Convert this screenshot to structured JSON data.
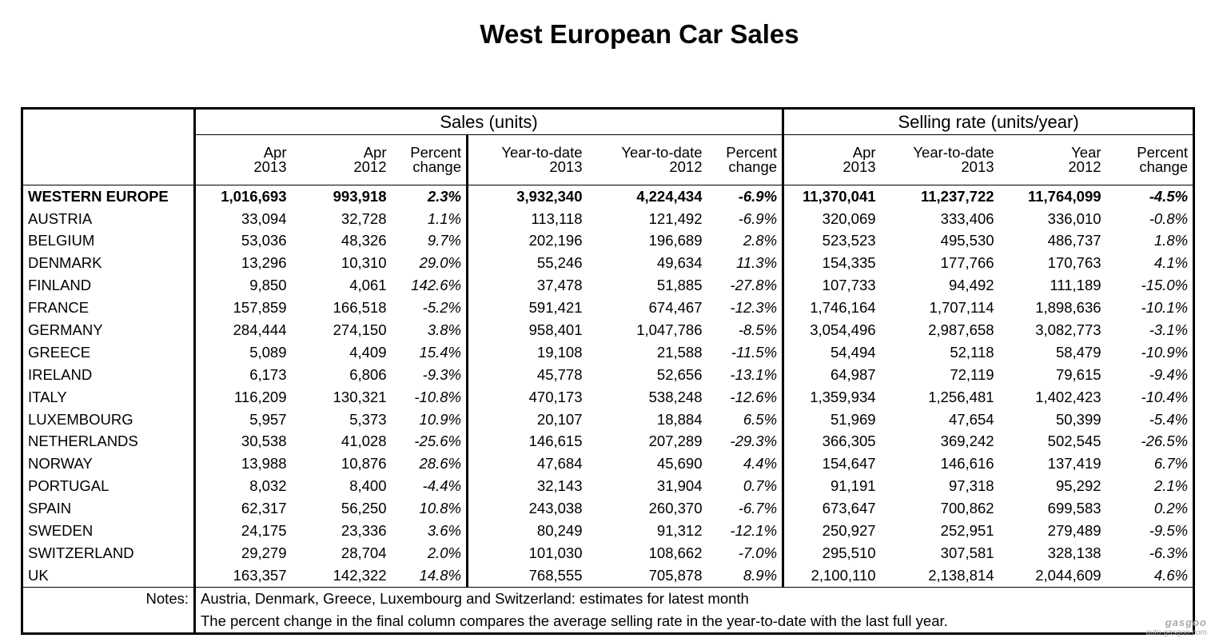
{
  "title": "West European Car Sales",
  "groups": {
    "sales": "Sales (units)",
    "rate": "Selling rate (units/year)"
  },
  "headers_top": [
    "Apr",
    "Apr",
    "Percent",
    "Year-to-date",
    "Year-to-date",
    "Percent",
    "Apr",
    "Year-to-date",
    "Year",
    "Percent"
  ],
  "headers_bottom": [
    "2013",
    "2012",
    "change",
    "2013",
    "2012",
    "change",
    "2013",
    "2013",
    "2012",
    "change"
  ],
  "rows": [
    {
      "name": "WESTERN EUROPE",
      "values": [
        "1,016,693",
        "993,918",
        "2.3%",
        "3,932,340",
        "4,224,434",
        "-6.9%",
        "11,370,041",
        "11,237,722",
        "11,764,099",
        "-4.5%"
      ]
    },
    {
      "name": "AUSTRIA",
      "values": [
        "33,094",
        "32,728",
        "1.1%",
        "113,118",
        "121,492",
        "-6.9%",
        "320,069",
        "333,406",
        "336,010",
        "-0.8%"
      ]
    },
    {
      "name": "BELGIUM",
      "values": [
        "53,036",
        "48,326",
        "9.7%",
        "202,196",
        "196,689",
        "2.8%",
        "523,523",
        "495,530",
        "486,737",
        "1.8%"
      ]
    },
    {
      "name": "DENMARK",
      "values": [
        "13,296",
        "10,310",
        "29.0%",
        "55,246",
        "49,634",
        "11.3%",
        "154,335",
        "177,766",
        "170,763",
        "4.1%"
      ]
    },
    {
      "name": "FINLAND",
      "values": [
        "9,850",
        "4,061",
        "142.6%",
        "37,478",
        "51,885",
        "-27.8%",
        "107,733",
        "94,492",
        "111,189",
        "-15.0%"
      ]
    },
    {
      "name": "FRANCE",
      "values": [
        "157,859",
        "166,518",
        "-5.2%",
        "591,421",
        "674,467",
        "-12.3%",
        "1,746,164",
        "1,707,114",
        "1,898,636",
        "-10.1%"
      ]
    },
    {
      "name": "GERMANY",
      "values": [
        "284,444",
        "274,150",
        "3.8%",
        "958,401",
        "1,047,786",
        "-8.5%",
        "3,054,496",
        "2,987,658",
        "3,082,773",
        "-3.1%"
      ]
    },
    {
      "name": "GREECE",
      "values": [
        "5,089",
        "4,409",
        "15.4%",
        "19,108",
        "21,588",
        "-11.5%",
        "54,494",
        "52,118",
        "58,479",
        "-10.9%"
      ]
    },
    {
      "name": "IRELAND",
      "values": [
        "6,173",
        "6,806",
        "-9.3%",
        "45,778",
        "52,656",
        "-13.1%",
        "64,987",
        "72,119",
        "79,615",
        "-9.4%"
      ]
    },
    {
      "name": "ITALY",
      "values": [
        "116,209",
        "130,321",
        "-10.8%",
        "470,173",
        "538,248",
        "-12.6%",
        "1,359,934",
        "1,256,481",
        "1,402,423",
        "-10.4%"
      ]
    },
    {
      "name": "LUXEMBOURG",
      "values": [
        "5,957",
        "5,373",
        "10.9%",
        "20,107",
        "18,884",
        "6.5%",
        "51,969",
        "47,654",
        "50,399",
        "-5.4%"
      ]
    },
    {
      "name": "NETHERLANDS",
      "values": [
        "30,538",
        "41,028",
        "-25.6%",
        "146,615",
        "207,289",
        "-29.3%",
        "366,305",
        "369,242",
        "502,545",
        "-26.5%"
      ]
    },
    {
      "name": "NORWAY",
      "values": [
        "13,988",
        "10,876",
        "28.6%",
        "47,684",
        "45,690",
        "4.4%",
        "154,647",
        "146,616",
        "137,419",
        "6.7%"
      ]
    },
    {
      "name": "PORTUGAL",
      "values": [
        "8,032",
        "8,400",
        "-4.4%",
        "32,143",
        "31,904",
        "0.7%",
        "91,191",
        "97,318",
        "95,292",
        "2.1%"
      ]
    },
    {
      "name": "SPAIN",
      "values": [
        "62,317",
        "56,250",
        "10.8%",
        "243,038",
        "260,370",
        "-6.7%",
        "673,647",
        "700,862",
        "699,583",
        "0.2%"
      ]
    },
    {
      "name": "SWEDEN",
      "values": [
        "24,175",
        "23,336",
        "3.6%",
        "80,249",
        "91,312",
        "-12.1%",
        "250,927",
        "252,951",
        "279,489",
        "-9.5%"
      ]
    },
    {
      "name": "SWITZERLAND",
      "values": [
        "29,279",
        "28,704",
        "2.0%",
        "101,030",
        "108,662",
        "-7.0%",
        "295,510",
        "307,581",
        "328,138",
        "-6.3%"
      ]
    },
    {
      "name": "UK",
      "values": [
        "163,357",
        "142,322",
        "14.8%",
        "768,555",
        "705,878",
        "8.9%",
        "2,100,110",
        "2,138,814",
        "2,044,609",
        "4.6%"
      ]
    }
  ],
  "notes": {
    "label": "Notes:",
    "lines": [
      "Austria, Denmark, Greece, Luxembourg and Switzerland: estimates for latest month",
      "The percent change in the final column compares the average selling rate in the year-to-date with the last full year."
    ]
  },
  "watermark": {
    "logo": "gasgoo",
    "url": "auto.gasgoo.com"
  }
}
